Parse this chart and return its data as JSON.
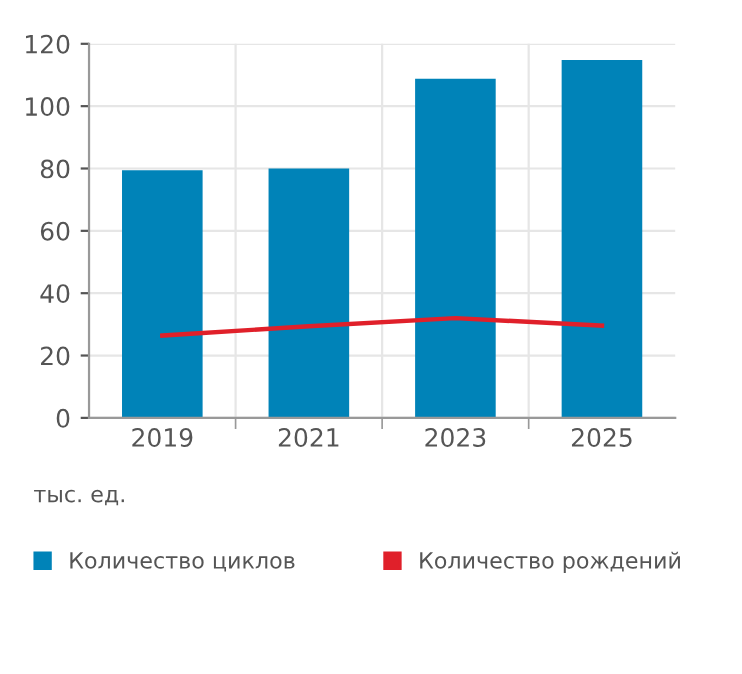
{
  "chart_data": {
    "type": "bar",
    "categories": [
      "2019",
      "2021",
      "2023",
      "2025"
    ],
    "series": [
      {
        "name": "Количество циклов",
        "color": "#0083b8",
        "values": [
          79.4,
          80,
          108.8,
          114.8
        ]
      },
      {
        "name": "Количество рождений",
        "color": "#e0202a",
        "type": "line",
        "values": [
          26.4,
          29.4,
          32,
          29.6
        ]
      }
    ],
    "ylim": [
      0,
      120
    ],
    "yticks": [
      0,
      20,
      40,
      60,
      80,
      100,
      120
    ],
    "grid": true,
    "legend": "bottom",
    "annotations": [
      "тыс. ед."
    ]
  }
}
